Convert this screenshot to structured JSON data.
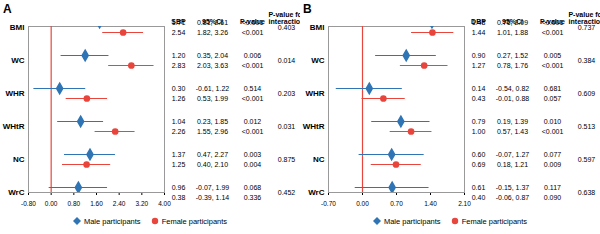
{
  "chart_data": [
    {
      "type": "forest",
      "title": "A",
      "columns": [
        "SBP",
        "95%CI",
        "P-value",
        "P-value for interaction"
      ],
      "categories": [
        "BMI",
        "WC",
        "WHR",
        "WHtR",
        "NC",
        "WrC"
      ],
      "series": [
        {
          "name": "Male participants",
          "color": "#2f75b5",
          "marker": "diamond",
          "values": [
            1.71,
            1.2,
            0.3,
            1.04,
            1.37,
            0.96
          ],
          "value_labels": [
            "1.71",
            "1.20",
            "0.30",
            "1.04",
            "1.37",
            "0.96"
          ],
          "ci_low": [
            0.81,
            0.35,
            -0.61,
            0.23,
            0.47,
            -0.07
          ],
          "ci_high": [
            2.61,
            2.04,
            1.22,
            1.85,
            2.27,
            1.99
          ],
          "ci_labels": [
            "0.81, 2.61",
            "0.35, 2.04",
            "-0.61, 1.22",
            "0.23, 1.85",
            "0.47, 2.27",
            "-0.07, 1.99"
          ],
          "p_values": [
            "<0.001",
            "0.006",
            "0.514",
            "0.012",
            "0.003",
            "0.068"
          ]
        },
        {
          "name": "Female participants",
          "color": "#e8453c",
          "marker": "circle",
          "values": [
            2.54,
            2.83,
            1.26,
            2.26,
            1.25,
            0.38
          ],
          "value_labels": [
            "2.54",
            "2.83",
            "1.26",
            "2.26",
            "1.25",
            "0.38"
          ],
          "ci_low": [
            1.82,
            2.03,
            0.53,
            1.55,
            0.4,
            -0.39
          ],
          "ci_high": [
            3.26,
            3.63,
            1.99,
            2.96,
            2.1,
            1.14
          ],
          "ci_labels": [
            "1.82, 3.26",
            "2.03, 3.63",
            "0.53, 1.99",
            "1.55, 2.96",
            "0.40, 2.10",
            "-0.39, 1.14"
          ],
          "p_values": [
            "<0.001",
            "<0.001",
            "<0.001",
            "<0.001",
            "0.004",
            "0.336"
          ]
        }
      ],
      "p_interaction": [
        "0.403",
        "0.014",
        "0.203",
        "0.031",
        "0.875",
        "0.452"
      ],
      "reference_line": 0,
      "xlim": [
        -0.8,
        4.0
      ],
      "xticks": [
        {
          "value": -0.8,
          "label": "-0.80"
        },
        {
          "value": 0,
          "label": "0.00"
        },
        {
          "value": 0.8,
          "label": "0.80"
        },
        {
          "value": 1.6,
          "label": "1.60"
        },
        {
          "value": 2.4,
          "label": "2.40"
        },
        {
          "value": 3.2,
          "label": "3.20"
        },
        {
          "value": 4.0,
          "label": "4.00"
        }
      ]
    },
    {
      "type": "forest",
      "title": "B",
      "columns": [
        "DBP",
        "95%CI",
        "P-value",
        "P-value for interaction"
      ],
      "categories": [
        "BMI",
        "WC",
        "WHR",
        "WHtR",
        "NC",
        "WrC"
      ],
      "series": [
        {
          "name": "Male participants",
          "color": "#2f75b5",
          "marker": "diamond",
          "values": [
            1.43,
            0.9,
            0.14,
            0.79,
            0.6,
            0.61
          ],
          "value_labels": [
            "1.43",
            "0.90",
            "0.14",
            "0.79",
            "0.60",
            "0.61"
          ],
          "ci_low": [
            0.76,
            0.27,
            -0.54,
            0.19,
            -0.07,
            -0.15
          ],
          "ci_high": [
            2.09,
            1.52,
            0.82,
            1.39,
            1.27,
            1.37
          ],
          "ci_labels": [
            "0.76, 2.09",
            "0.27, 1.52",
            "-0.54, 0.82",
            "0.19, 1.39",
            "-0.07, 1.27",
            "-0.15, 1.37"
          ],
          "p_values": [
            "<0.001",
            "0.005",
            "0.681",
            "0.010",
            "0.077",
            "0.117"
          ]
        },
        {
          "name": "Female participants",
          "color": "#e8453c",
          "marker": "circle",
          "values": [
            1.44,
            1.27,
            0.43,
            1.0,
            0.69,
            0.4
          ],
          "value_labels": [
            "1.44",
            "1.27",
            "0.43",
            "1.00",
            "0.69",
            "0.40"
          ],
          "ci_low": [
            1.01,
            0.78,
            -0.01,
            0.57,
            0.18,
            -0.06
          ],
          "ci_high": [
            1.88,
            1.76,
            0.88,
            1.43,
            1.21,
            0.87
          ],
          "ci_labels": [
            "1.01, 1.88",
            "0.78, 1.76",
            "-0.01, 0.88",
            "0.57, 1.43",
            "0.18, 1.21",
            "-0.06, 0.87"
          ],
          "p_values": [
            "<0.001",
            "<0.001",
            "0.057",
            "<0.001",
            "0.009",
            "0.090"
          ]
        }
      ],
      "p_interaction": [
        "0.737",
        "0.384",
        "0.609",
        "0.513",
        "0.597",
        "0.638"
      ],
      "reference_line": 0,
      "xlim": [
        -0.7,
        2.1
      ],
      "xticks": [
        {
          "value": -0.7,
          "label": "-0.70"
        },
        {
          "value": 0,
          "label": "0.00"
        },
        {
          "value": 0.7,
          "label": "0.70"
        },
        {
          "value": 1.4,
          "label": "1.40"
        },
        {
          "value": 2.1,
          "label": "2.10"
        }
      ]
    }
  ]
}
